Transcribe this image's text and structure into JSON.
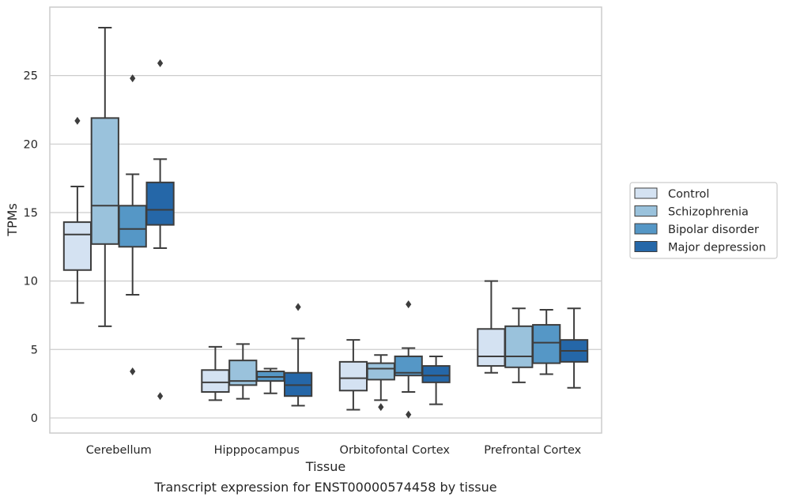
{
  "chart_data": {
    "type": "boxplot",
    "title": "",
    "caption": "Transcript expression for ENST00000574458 by tissue",
    "xlabel": "Tissue",
    "ylabel": "TPMs",
    "ylim": [
      -1.1,
      30.0
    ],
    "yticks": [
      0,
      5,
      10,
      15,
      20,
      25
    ],
    "grid": true,
    "legend_position": "right",
    "categories": [
      "Cerebellum",
      "Hipppocampus",
      "Orbitofontal Cortex",
      "Prefrontal Cortex"
    ],
    "series": [
      {
        "name": "Control",
        "color": "#d4e2f2",
        "boxes": [
          {
            "whislo": 8.4,
            "q1": 10.8,
            "med": 13.4,
            "q3": 14.3,
            "whishi": 16.9,
            "fliers": [
              21.7
            ]
          },
          {
            "whislo": 1.3,
            "q1": 1.9,
            "med": 2.6,
            "q3": 3.5,
            "whishi": 5.2,
            "fliers": []
          },
          {
            "whislo": 0.6,
            "q1": 2.0,
            "med": 2.9,
            "q3": 4.1,
            "whishi": 5.7,
            "fliers": []
          },
          {
            "whislo": 3.3,
            "q1": 3.8,
            "med": 4.5,
            "q3": 6.5,
            "whishi": 10.0,
            "fliers": []
          }
        ]
      },
      {
        "name": "Schizophrenia",
        "color": "#9ac2dc",
        "boxes": [
          {
            "whislo": 6.7,
            "q1": 12.7,
            "med": 15.5,
            "q3": 21.9,
            "whishi": 28.5,
            "fliers": []
          },
          {
            "whislo": 1.4,
            "q1": 2.4,
            "med": 2.7,
            "q3": 4.2,
            "whishi": 5.4,
            "fliers": []
          },
          {
            "whislo": 1.3,
            "q1": 2.8,
            "med": 3.6,
            "q3": 4.0,
            "whishi": 4.6,
            "fliers": [
              0.8
            ]
          },
          {
            "whislo": 2.6,
            "q1": 3.7,
            "med": 4.5,
            "q3": 6.7,
            "whishi": 8.0,
            "fliers": []
          }
        ]
      },
      {
        "name": "Bipolar disorder",
        "color": "#5597c6",
        "boxes": [
          {
            "whislo": 9.0,
            "q1": 12.5,
            "med": 13.8,
            "q3": 15.5,
            "whishi": 17.8,
            "fliers": [
              3.4,
              24.8
            ]
          },
          {
            "whislo": 1.8,
            "q1": 2.7,
            "med": 3.0,
            "q3": 3.4,
            "whishi": 3.6,
            "fliers": []
          },
          {
            "whislo": 1.9,
            "q1": 3.1,
            "med": 3.3,
            "q3": 4.5,
            "whishi": 5.1,
            "fliers": [
              0.25,
              8.3
            ]
          },
          {
            "whislo": 3.2,
            "q1": 4.0,
            "med": 5.5,
            "q3": 6.8,
            "whishi": 7.9,
            "fliers": []
          }
        ]
      },
      {
        "name": "Major depression",
        "color": "#2567a8",
        "boxes": [
          {
            "whislo": 12.4,
            "q1": 14.1,
            "med": 15.2,
            "q3": 17.2,
            "whishi": 18.9,
            "fliers": [
              1.6,
              25.9
            ]
          },
          {
            "whislo": 0.9,
            "q1": 1.6,
            "med": 2.4,
            "q3": 3.3,
            "whishi": 5.8,
            "fliers": [
              8.1
            ]
          },
          {
            "whislo": 1.0,
            "q1": 2.6,
            "med": 3.1,
            "q3": 3.8,
            "whishi": 4.5,
            "fliers": []
          },
          {
            "whislo": 2.2,
            "q1": 4.1,
            "med": 4.9,
            "q3": 5.7,
            "whishi": 8.0,
            "fliers": []
          }
        ]
      }
    ]
  }
}
